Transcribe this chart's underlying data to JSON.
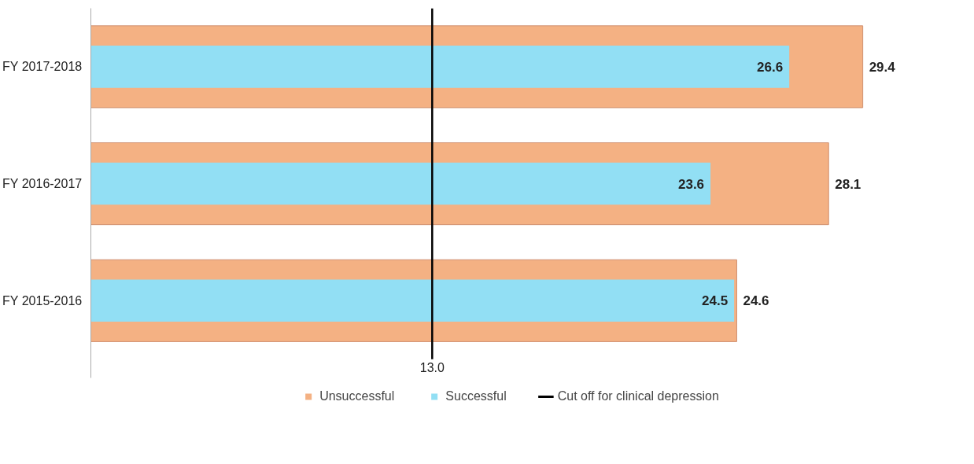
{
  "chart_data": {
    "type": "bar",
    "orientation": "horizontal",
    "categories": [
      "FY 2017-2018",
      "FY 2016-2017",
      "FY 2015-2016"
    ],
    "series": [
      {
        "name": "Unsuccessful",
        "color": "#f4b183",
        "values": [
          29.4,
          28.1,
          24.6
        ]
      },
      {
        "name": "Successful",
        "color": "#92dff4",
        "values": [
          26.6,
          23.6,
          24.5
        ]
      }
    ],
    "annotations": [
      "13.0"
    ],
    "ref_lines": [
      {
        "axis": "x",
        "value": 13,
        "label": "Cut off for clinical depression",
        "color": "#000000"
      }
    ],
    "data_labels": true,
    "grid": false,
    "legend": "bottom"
  }
}
